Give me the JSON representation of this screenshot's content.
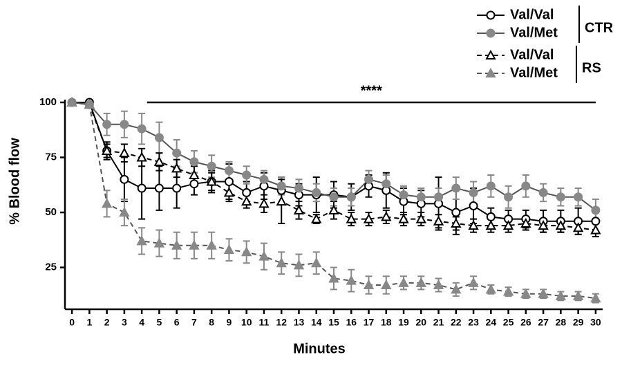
{
  "chart_data": {
    "type": "line",
    "xlabel": "Minutes",
    "ylabel": "% Blood flow",
    "x": [
      0,
      1,
      2,
      3,
      4,
      5,
      6,
      7,
      8,
      9,
      10,
      11,
      12,
      13,
      14,
      15,
      16,
      17,
      18,
      19,
      20,
      21,
      22,
      23,
      24,
      25,
      26,
      27,
      28,
      29,
      30
    ],
    "xlim": [
      -0.4,
      30.4
    ],
    "ylim": [
      6,
      100
    ],
    "xticks": [
      0,
      1,
      2,
      3,
      4,
      5,
      6,
      7,
      8,
      9,
      10,
      11,
      12,
      13,
      14,
      15,
      16,
      17,
      18,
      19,
      20,
      21,
      22,
      23,
      24,
      25,
      26,
      27,
      28,
      29,
      30
    ],
    "yticks": [
      25,
      50,
      75,
      100
    ],
    "annotations": [
      {
        "text": "****",
        "x": [
          4.3,
          30
        ],
        "y": 100
      }
    ],
    "series": [
      {
        "name": "Val/Val",
        "group": "CTR",
        "color": "#000000",
        "marker": "circle",
        "filled": false,
        "dashed": false,
        "values": [
          100,
          100,
          78,
          65,
          61,
          61,
          61,
          63,
          64,
          64,
          59,
          62,
          60,
          58,
          58,
          58,
          57,
          62,
          60,
          55,
          54,
          54,
          50,
          53,
          48,
          47,
          47,
          46,
          46,
          46,
          46
        ],
        "errors": [
          1,
          1,
          4,
          10,
          14,
          10,
          9,
          5,
          5,
          8,
          5,
          6,
          6,
          5,
          8,
          6,
          6,
          5,
          8,
          6,
          6,
          12,
          10,
          8,
          4,
          4,
          4,
          5,
          5,
          6,
          5
        ]
      },
      {
        "name": "Val/Met",
        "group": "CTR",
        "color": "#888888",
        "marker": "circle",
        "filled": true,
        "dashed": false,
        "values": [
          100,
          99,
          90,
          90,
          88,
          84,
          77,
          73,
          71,
          69,
          67,
          65,
          62,
          61,
          59,
          57,
          57,
          65,
          63,
          58,
          57,
          57,
          61,
          59,
          62,
          57,
          62,
          59,
          57,
          57,
          51
        ],
        "errors": [
          1,
          1,
          5,
          6,
          7,
          7,
          6,
          5,
          5,
          4,
          4,
          4,
          4,
          4,
          4,
          4,
          4,
          4,
          4,
          4,
          4,
          4,
          5,
          5,
          5,
          5,
          5,
          4,
          4,
          4,
          5
        ]
      },
      {
        "name": "Val/Val",
        "group": "RS",
        "color": "#000000",
        "marker": "triangle",
        "filled": false,
        "dashed": true,
        "values": [
          100,
          99,
          78,
          77,
          75,
          73,
          70,
          67,
          64,
          59,
          55,
          54,
          55,
          51,
          47,
          51,
          47,
          47,
          48,
          47,
          47,
          46,
          45,
          44,
          44,
          44,
          45,
          44,
          44,
          43,
          42
        ],
        "errors": [
          1,
          1,
          3,
          4,
          4,
          4,
          4,
          4,
          4,
          4,
          3,
          4,
          10,
          4,
          2,
          4,
          3,
          3,
          3,
          3,
          3,
          3,
          3,
          3,
          3,
          3,
          3,
          3,
          3,
          3,
          3
        ]
      },
      {
        "name": "Val/Met",
        "group": "RS",
        "color": "#888888",
        "marker": "triangle",
        "filled": true,
        "dashed": true,
        "values": [
          100,
          99,
          54,
          50,
          37,
          36,
          35,
          35,
          35,
          33,
          32,
          30,
          27,
          26,
          27,
          20,
          19,
          17,
          17,
          18,
          18,
          17,
          15,
          18,
          15,
          14,
          13,
          13,
          12,
          12,
          11
        ],
        "errors": [
          1,
          1,
          6,
          6,
          6,
          6,
          6,
          6,
          6,
          5,
          5,
          6,
          5,
          5,
          5,
          5,
          5,
          4,
          4,
          3,
          3,
          3,
          3,
          3,
          2,
          2,
          2,
          2,
          2,
          2,
          2
        ]
      }
    ]
  }
}
